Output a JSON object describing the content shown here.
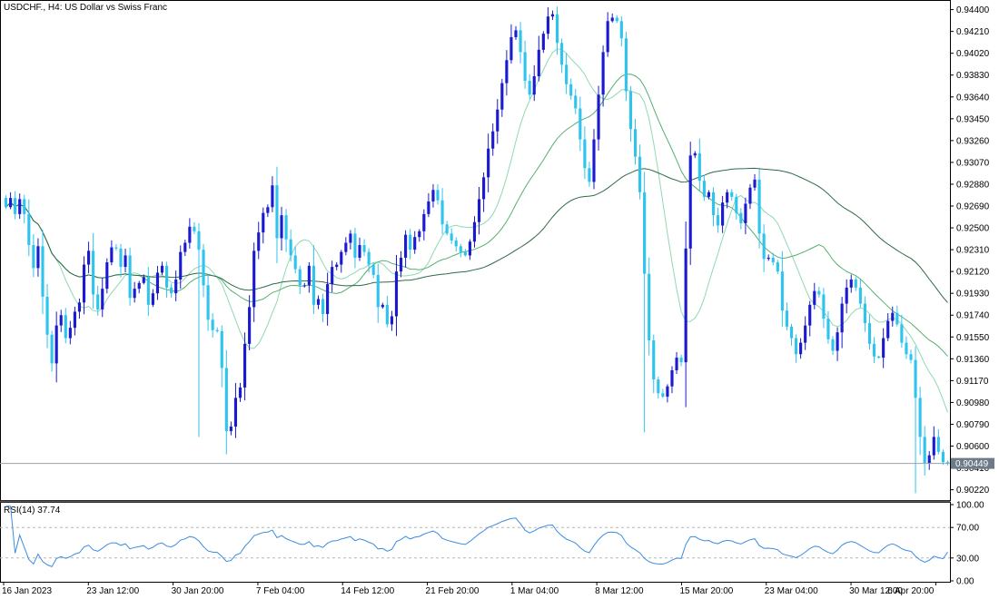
{
  "header": {
    "symbol": "USDCHF.,",
    "timeframe": "H4:",
    "description": "US Dollar vs Swiss Franc"
  },
  "colors": {
    "bull": "#1a1ad0",
    "bear": "#2ec4ee",
    "ma_fast": "#8fd9b0",
    "ma_mid": "#55b070",
    "ma_slow": "#2e6b48",
    "rsi": "#3b8de0",
    "price_line": "#9aa3ad",
    "grid_level": "#b8b8b8"
  },
  "chart_data": [
    {
      "type": "candlestick",
      "name": "price",
      "ylim": [
        0.9013,
        0.9446
      ],
      "y_ticks": [
        "0.94400",
        "0.94210",
        "0.94020",
        "0.93830",
        "0.93640",
        "0.93450",
        "0.93260",
        "0.93070",
        "0.92880",
        "0.92690",
        "0.92500",
        "0.92310",
        "0.92120",
        "0.91930",
        "0.91740",
        "0.91550",
        "0.91360",
        "0.91170",
        "0.90980",
        "0.90790",
        "0.90600",
        "0.90410",
        "0.90220"
      ],
      "x_labels": [
        "16 Jan 2023",
        "23 Jan 12:00",
        "30 Jan 20:00",
        "7 Feb 04:00",
        "14 Feb 12:00",
        "21 Feb 20:00",
        "1 Mar 04:00",
        "8 Mar 12:00",
        "15 Mar 20:00",
        "23 Mar 04:00",
        "30 Mar 12:00",
        "6 Apr 20:00"
      ],
      "current_price": 0.90449,
      "current_price_label": "0.90449",
      "closes": [
        0.9268,
        0.9276,
        0.9262,
        0.9275,
        0.9262,
        0.9235,
        0.9215,
        0.9234,
        0.919,
        0.9157,
        0.9132,
        0.9165,
        0.9174,
        0.9154,
        0.9163,
        0.9177,
        0.9185,
        0.9218,
        0.923,
        0.9192,
        0.9179,
        0.9197,
        0.922,
        0.9233,
        0.9232,
        0.9216,
        0.9226,
        0.9189,
        0.9197,
        0.9202,
        0.9207,
        0.9183,
        0.9193,
        0.9211,
        0.9217,
        0.9198,
        0.9193,
        0.9205,
        0.9229,
        0.9237,
        0.9251,
        0.9247,
        0.9231,
        0.92,
        0.917,
        0.9161,
        0.916,
        0.9128,
        0.9073,
        0.9077,
        0.9102,
        0.9111,
        0.9149,
        0.9181,
        0.923,
        0.9246,
        0.9263,
        0.9268,
        0.9287,
        0.9241,
        0.9261,
        0.924,
        0.9226,
        0.9214,
        0.92,
        0.92,
        0.9217,
        0.9183,
        0.9188,
        0.9175,
        0.9201,
        0.9216,
        0.9218,
        0.9229,
        0.9237,
        0.9245,
        0.9224,
        0.9235,
        0.9229,
        0.9218,
        0.9209,
        0.9181,
        0.9183,
        0.9166,
        0.9173,
        0.9212,
        0.9224,
        0.9244,
        0.9231,
        0.9242,
        0.9247,
        0.9262,
        0.9273,
        0.9283,
        0.9274,
        0.9253,
        0.9245,
        0.9239,
        0.9234,
        0.9229,
        0.9226,
        0.9238,
        0.9255,
        0.9275,
        0.9294,
        0.9319,
        0.9334,
        0.9353,
        0.9376,
        0.9396,
        0.9416,
        0.9422,
        0.9403,
        0.9378,
        0.9366,
        0.9382,
        0.9405,
        0.9419,
        0.9434,
        0.9436,
        0.9411,
        0.9392,
        0.9375,
        0.9365,
        0.9354,
        0.9327,
        0.9302,
        0.929,
        0.9327,
        0.9366,
        0.9403,
        0.943,
        0.9433,
        0.943,
        0.9415,
        0.9369,
        0.9336,
        0.9312,
        0.9281,
        0.921,
        0.9152,
        0.9118,
        0.9106,
        0.9103,
        0.9112,
        0.9126,
        0.9137,
        0.9133,
        0.9232,
        0.9313,
        0.9315,
        0.9291,
        0.9277,
        0.9281,
        0.9261,
        0.9252,
        0.9272,
        0.9281,
        0.9277,
        0.9263,
        0.9254,
        0.9271,
        0.9285,
        0.9292,
        0.9245,
        0.9223,
        0.9224,
        0.922,
        0.9212,
        0.9178,
        0.9164,
        0.9154,
        0.914,
        0.915,
        0.9165,
        0.9183,
        0.9195,
        0.9192,
        0.9171,
        0.9153,
        0.9143,
        0.9159,
        0.9184,
        0.9198,
        0.9205,
        0.9198,
        0.9184,
        0.9167,
        0.9149,
        0.9138,
        0.9137,
        0.9154,
        0.9169,
        0.9176,
        0.9166,
        0.915,
        0.914,
        0.9135,
        0.9102,
        0.9068,
        0.9045,
        0.9052,
        0.9068,
        0.9055,
        0.9046,
        0.9045
      ],
      "series": [
        {
          "name": "MA fast",
          "color_key": "ma_fast"
        },
        {
          "name": "MA mid",
          "color_key": "ma_mid"
        },
        {
          "name": "MA slow",
          "color_key": "ma_slow"
        }
      ]
    },
    {
      "type": "line",
      "name": "RSI(14)",
      "label": "RSI(14) 37.74",
      "value": 37.74,
      "ylim": [
        0,
        100
      ],
      "y_ticks": [
        "100.00",
        "70.00",
        "30.00",
        "0.00"
      ],
      "levels": [
        70,
        30
      ]
    }
  ]
}
